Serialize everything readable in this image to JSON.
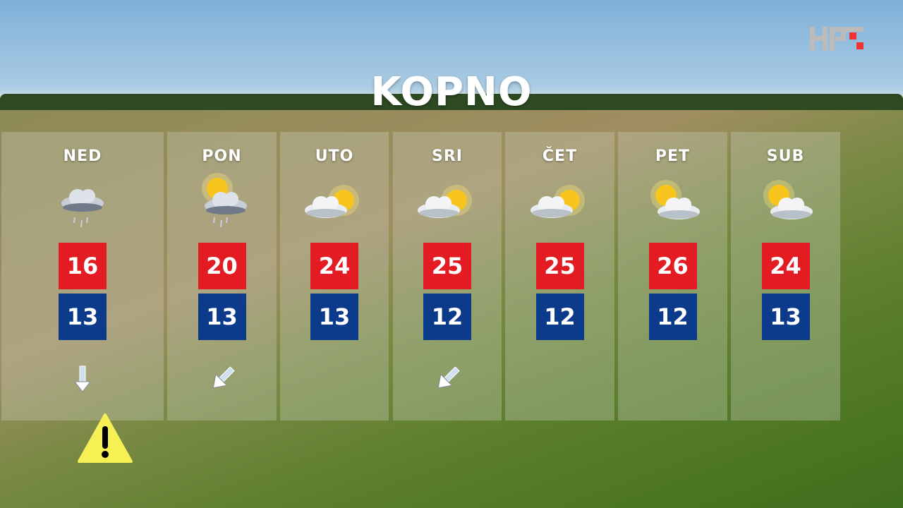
{
  "title": "KOPNO",
  "logo": "HRT",
  "colors": {
    "max": "#e31b23",
    "min": "#0d3b8c",
    "warning": "#f6f055"
  },
  "days": [
    {
      "name": "NED",
      "icon": "rain-cloud",
      "max": "16",
      "min": "13",
      "wind": "down"
    },
    {
      "name": "PON",
      "icon": "sun-cloud-rain",
      "max": "20",
      "min": "13",
      "wind": "southwest"
    },
    {
      "name": "UTO",
      "icon": "cloud-sun",
      "max": "24",
      "min": "13",
      "wind": ""
    },
    {
      "name": "SRI",
      "icon": "cloud-sun",
      "max": "25",
      "min": "12",
      "wind": "southwest"
    },
    {
      "name": "ČET",
      "icon": "cloud-sun",
      "max": "25",
      "min": "12",
      "wind": ""
    },
    {
      "name": "PET",
      "icon": "sun-cloud",
      "max": "26",
      "min": "12",
      "wind": ""
    },
    {
      "name": "SUB",
      "icon": "sun-cloud",
      "max": "24",
      "min": "13",
      "wind": ""
    }
  ],
  "warning_icon": "warning-triangle-icon"
}
